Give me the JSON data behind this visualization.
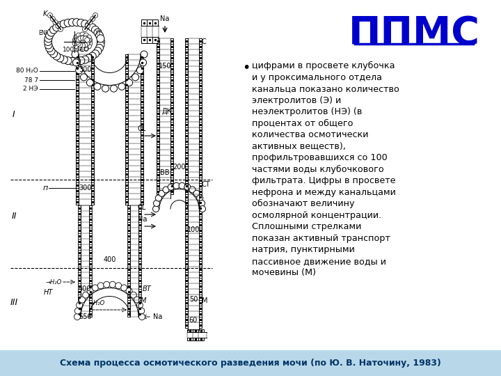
{
  "title": "ППМС",
  "title_color": "#0000CC",
  "bullet_text": "цифрами в просвете клубочка\nи у проксимального отдела\nканальца показано количество\nэлектролитов (Э) и\nнеэлектролитов (НЭ) (в\nпроцентах от общего\nколичества осмотически\nактивных веществ),\nпрофильтровавшихся со 100\nчастями воды клубочкового\nфильтрата. Цифры в просвете\nнефрона и между канальцами\nобозначают величину\nосмолярной концентрации.\nСплошными стрелками\nпоказан активный транспорт\nнатрия, пунктирными\nпассивное движение воды и\nмочевины (М)",
  "footer_text": "Схема процесса осмотического разведения мочи (по Ю. В. Наточину, 1983)",
  "footer_bg": "#B8D8EA",
  "footer_text_color": "#003366",
  "background_color": "#FFFFFF",
  "cell_color": "#FFFFFF",
  "line_color": "#000000"
}
